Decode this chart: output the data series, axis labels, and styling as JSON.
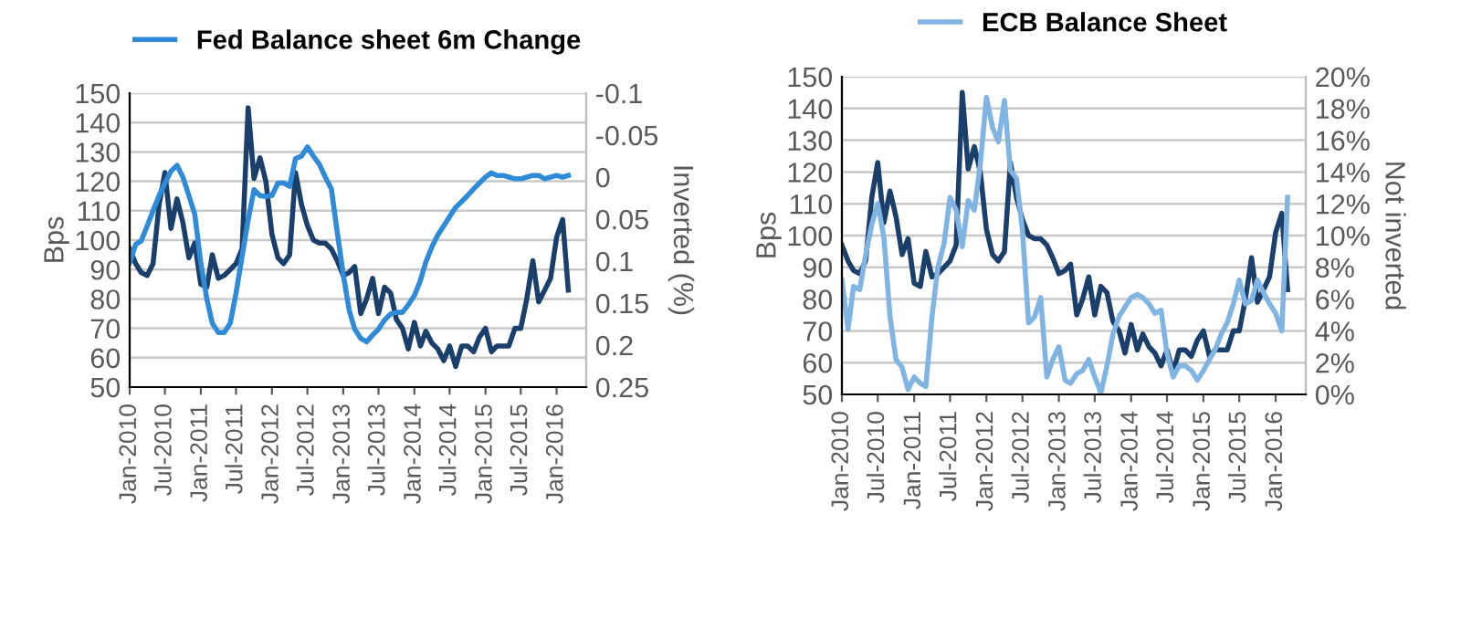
{
  "chart_data": [
    {
      "type": "line",
      "ylabel": "Bps",
      "y2label": "Inverted (%)",
      "legend": "top",
      "grid": "y",
      "x": [
        "2010-01",
        "2010-02",
        "2010-03",
        "2010-04",
        "2010-05",
        "2010-06",
        "2010-07",
        "2010-08",
        "2010-09",
        "2010-10",
        "2010-11",
        "2010-12",
        "2011-01",
        "2011-02",
        "2011-03",
        "2011-04",
        "2011-05",
        "2011-06",
        "2011-07",
        "2011-08",
        "2011-09",
        "2011-10",
        "2011-11",
        "2011-12",
        "2012-01",
        "2012-02",
        "2012-03",
        "2012-04",
        "2012-05",
        "2012-06",
        "2012-07",
        "2012-08",
        "2012-09",
        "2012-10",
        "2012-11",
        "2012-12",
        "2013-01",
        "2013-02",
        "2013-03",
        "2013-04",
        "2013-05",
        "2013-06",
        "2013-07",
        "2013-08",
        "2013-09",
        "2013-10",
        "2013-11",
        "2013-12",
        "2014-01",
        "2014-02",
        "2014-03",
        "2014-04",
        "2014-05",
        "2014-06",
        "2014-07",
        "2014-08",
        "2014-09",
        "2014-10",
        "2014-11",
        "2014-12",
        "2015-01",
        "2015-02",
        "2015-03",
        "2015-04",
        "2015-05",
        "2015-06",
        "2015-07",
        "2015-08",
        "2015-09",
        "2015-10",
        "2015-11",
        "2015-12",
        "2016-01",
        "2016-02",
        "2016-03"
      ],
      "xlim": [
        "2010-01",
        "2016-06"
      ],
      "xticks": [
        {
          "value": "2010-01",
          "label": "Jan-2010"
        },
        {
          "value": "2010-07",
          "label": "Jul-2010"
        },
        {
          "value": "2011-01",
          "label": "Jan-2011"
        },
        {
          "value": "2011-07",
          "label": "Jul-2011"
        },
        {
          "value": "2012-01",
          "label": "Jan-2012"
        },
        {
          "value": "2012-07",
          "label": "Jul-2012"
        },
        {
          "value": "2013-01",
          "label": "Jan-2013"
        },
        {
          "value": "2013-07",
          "label": "Jul-2013"
        },
        {
          "value": "2014-01",
          "label": "Jan-2014"
        },
        {
          "value": "2014-07",
          "label": "Jul-2014"
        },
        {
          "value": "2015-01",
          "label": "Jan-2015"
        },
        {
          "value": "2015-07",
          "label": "Jul-2015"
        },
        {
          "value": "2016-01",
          "label": "Jan-2016"
        }
      ],
      "ylim": [
        50,
        150
      ],
      "yticks": [
        50,
        60,
        70,
        80,
        90,
        100,
        110,
        120,
        130,
        140,
        150
      ],
      "y2lim": [
        0.25,
        -0.1
      ],
      "y2ticks": [
        -0.1,
        -0.05,
        0,
        0.05,
        0.1,
        0.15,
        0.2,
        0.25
      ],
      "series": [
        {
          "color": "#1b3f6b",
          "values": [
            97,
            92,
            89,
            88,
            92,
            112,
            123,
            104,
            114,
            106,
            94,
            99,
            85,
            84,
            95,
            87,
            88,
            90,
            92,
            97,
            145,
            121,
            128,
            120,
            102,
            94,
            92,
            95,
            123,
            112,
            105,
            100,
            99,
            99,
            97,
            93,
            88,
            89,
            91,
            75,
            80,
            87,
            75,
            84,
            82,
            73,
            70,
            63,
            72,
            64,
            69,
            65,
            63,
            59,
            64,
            57,
            64,
            64,
            62,
            67,
            70,
            62,
            64,
            64,
            64,
            70,
            70,
            80,
            93,
            79,
            83,
            87,
            101,
            107,
            83
          ]
        },
        {
          "name": "Fed Balance sheet 6m Change",
          "color": "#2f8ad8",
          "axis": "y2",
          "values": [
            0.102,
            0.08,
            0.076,
            0.058,
            0.04,
            0.022,
            0.007,
            -0.007,
            -0.014,
            0.0,
            0.022,
            0.044,
            0.102,
            0.145,
            0.174,
            0.185,
            0.185,
            0.174,
            0.138,
            0.094,
            0.051,
            0.015,
            0.022,
            0.023,
            0.022,
            0.007,
            0.007,
            0.011,
            -0.022,
            -0.025,
            -0.036,
            -0.025,
            -0.015,
            0.0,
            0.014,
            0.065,
            0.116,
            0.159,
            0.181,
            0.192,
            0.196,
            0.188,
            0.181,
            0.17,
            0.163,
            0.161,
            0.161,
            0.152,
            0.141,
            0.123,
            0.101,
            0.083,
            0.069,
            0.058,
            0.047,
            0.036,
            0.029,
            0.022,
            0.014,
            0.007,
            0.0,
            -0.005,
            -0.002,
            -0.002,
            0.0,
            0.002,
            0.002,
            0.0,
            -0.002,
            -0.002,
            0.002,
            0.0,
            -0.002,
            0.0,
            -0.002
          ]
        }
      ]
    },
    {
      "type": "line",
      "ylabel": "Bps",
      "y2label": "Not inverted",
      "legend": "top",
      "grid": "y",
      "x": [
        "2010-01",
        "2010-02",
        "2010-03",
        "2010-04",
        "2010-05",
        "2010-06",
        "2010-07",
        "2010-08",
        "2010-09",
        "2010-10",
        "2010-11",
        "2010-12",
        "2011-01",
        "2011-02",
        "2011-03",
        "2011-04",
        "2011-05",
        "2011-06",
        "2011-07",
        "2011-08",
        "2011-09",
        "2011-10",
        "2011-11",
        "2011-12",
        "2012-01",
        "2012-02",
        "2012-03",
        "2012-04",
        "2012-05",
        "2012-06",
        "2012-07",
        "2012-08",
        "2012-09",
        "2012-10",
        "2012-11",
        "2012-12",
        "2013-01",
        "2013-02",
        "2013-03",
        "2013-04",
        "2013-05",
        "2013-06",
        "2013-07",
        "2013-08",
        "2013-09",
        "2013-10",
        "2013-11",
        "2013-12",
        "2014-01",
        "2014-02",
        "2014-03",
        "2014-04",
        "2014-05",
        "2014-06",
        "2014-07",
        "2014-08",
        "2014-09",
        "2014-10",
        "2014-11",
        "2014-12",
        "2015-01",
        "2015-02",
        "2015-03",
        "2015-04",
        "2015-05",
        "2015-06",
        "2015-07",
        "2015-08",
        "2015-09",
        "2015-10",
        "2015-11",
        "2015-12",
        "2016-01",
        "2016-02",
        "2016-03"
      ],
      "xlim": [
        "2010-01",
        "2016-06"
      ],
      "xticks": [
        {
          "value": "2010-01",
          "label": "Jan-2010"
        },
        {
          "value": "2010-07",
          "label": "Jul-2010"
        },
        {
          "value": "2011-01",
          "label": "Jan-2011"
        },
        {
          "value": "2011-07",
          "label": "Jul-2011"
        },
        {
          "value": "2012-01",
          "label": "Jan-2012"
        },
        {
          "value": "2012-07",
          "label": "Jul-2012"
        },
        {
          "value": "2013-01",
          "label": "Jan-2013"
        },
        {
          "value": "2013-07",
          "label": "Jul-2013"
        },
        {
          "value": "2014-01",
          "label": "Jan-2014"
        },
        {
          "value": "2014-07",
          "label": "Jul-2014"
        },
        {
          "value": "2015-01",
          "label": "Jan-2015"
        },
        {
          "value": "2015-07",
          "label": "Jul-2015"
        },
        {
          "value": "2016-01",
          "label": "Jan-2016"
        }
      ],
      "ylim": [
        50,
        150
      ],
      "yticks": [
        50,
        60,
        70,
        80,
        90,
        100,
        110,
        120,
        130,
        140,
        150
      ],
      "y2lim": [
        0,
        20
      ],
      "y2ticks": [
        {
          "value": 0,
          "label": "0%"
        },
        {
          "value": 2,
          "label": "2%"
        },
        {
          "value": 4,
          "label": "4%"
        },
        {
          "value": 6,
          "label": "6%"
        },
        {
          "value": 8,
          "label": "8%"
        },
        {
          "value": 10,
          "label": "10%"
        },
        {
          "value": 12,
          "label": "12%"
        },
        {
          "value": 14,
          "label": "14%"
        },
        {
          "value": 16,
          "label": "16%"
        },
        {
          "value": 18,
          "label": "18%"
        },
        {
          "value": 20,
          "label": "20%"
        }
      ],
      "series": [
        {
          "color": "#1b3f6b",
          "values": [
            97,
            92,
            89,
            88,
            92,
            112,
            123,
            104,
            114,
            106,
            94,
            99,
            85,
            84,
            95,
            87,
            88,
            90,
            92,
            97,
            145,
            121,
            128,
            120,
            102,
            94,
            92,
            95,
            123,
            112,
            105,
            100,
            99,
            99,
            97,
            93,
            88,
            89,
            91,
            75,
            80,
            87,
            75,
            84,
            82,
            73,
            70,
            63,
            72,
            64,
            69,
            65,
            63,
            59,
            64,
            57,
            64,
            64,
            62,
            67,
            70,
            62,
            64,
            64,
            64,
            70,
            70,
            80,
            93,
            79,
            83,
            87,
            101,
            107,
            83
          ]
        },
        {
          "name": "ECB Balance Sheet",
          "color": "#80b4e2",
          "axis": "y2",
          "values": [
            7.2,
            4.1,
            6.8,
            6.6,
            8.8,
            10.7,
            12.0,
            9.9,
            4.9,
            2.2,
            1.7,
            0.3,
            1.1,
            0.7,
            0.5,
            4.9,
            8.0,
            9.5,
            12.4,
            11.6,
            9.3,
            12.2,
            11.6,
            14.5,
            18.7,
            16.8,
            15.9,
            18.5,
            14.1,
            13.6,
            10.3,
            4.5,
            4.9,
            6.1,
            1.1,
            2.2,
            3.0,
            0.9,
            0.7,
            1.3,
            1.5,
            2.2,
            1.1,
            0.1,
            1.8,
            3.8,
            4.9,
            5.5,
            6.1,
            6.3,
            6.1,
            5.7,
            5.1,
            5.3,
            2.6,
            1.1,
            1.8,
            1.8,
            1.5,
            0.9,
            1.5,
            2.2,
            2.8,
            3.8,
            4.5,
            5.7,
            7.2,
            5.7,
            5.9,
            7.2,
            6.4,
            5.7,
            5.1,
            4.0,
            12.4
          ]
        }
      ]
    }
  ]
}
